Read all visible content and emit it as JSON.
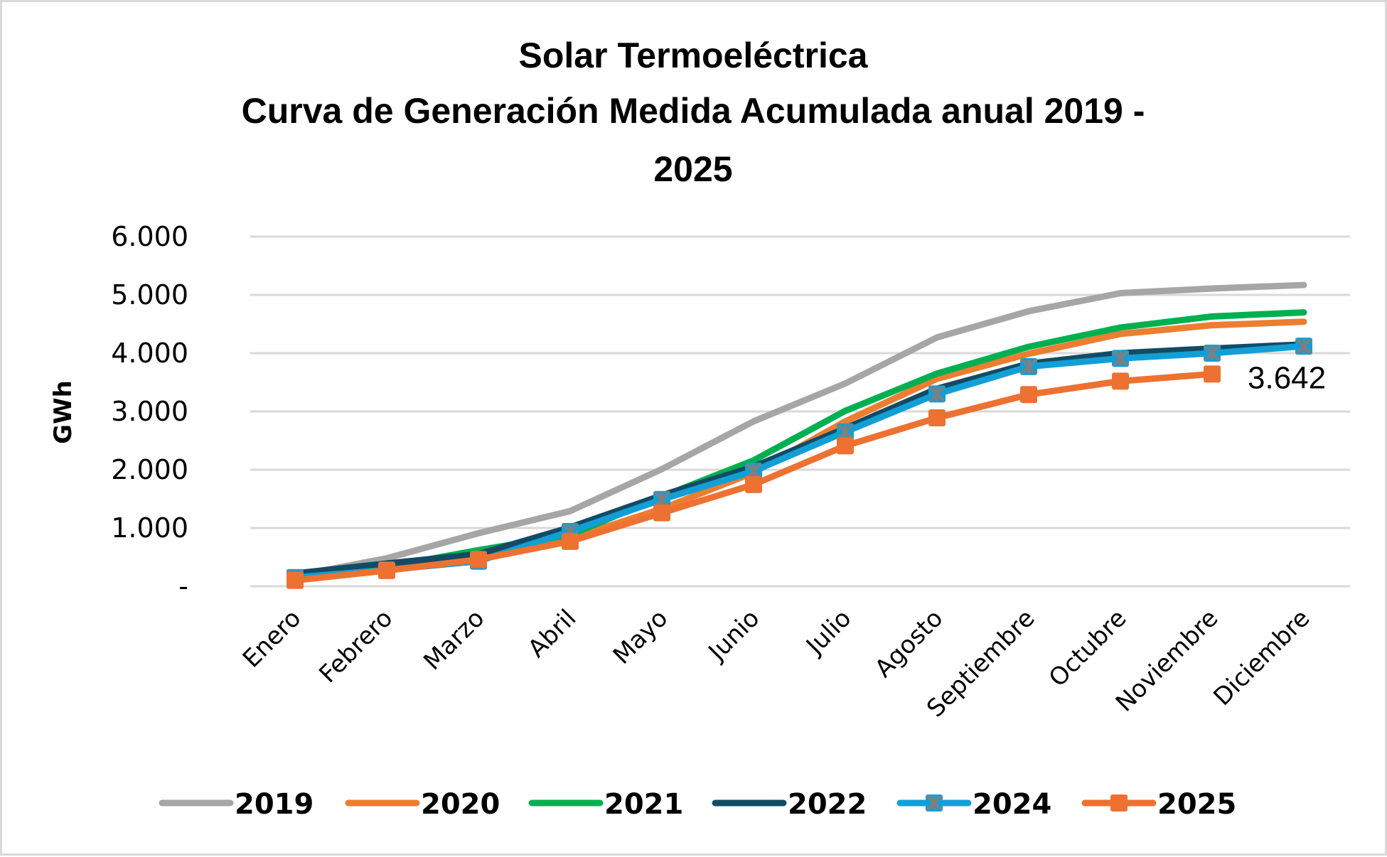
{
  "chart_data": {
    "type": "line",
    "title": [
      "Solar Termoeléctrica",
      "Curva de Generación Medida Acumulada anual 2019 -",
      "2025"
    ],
    "xlabel": "",
    "ylabel": "GWh",
    "ylim": [
      0,
      6000
    ],
    "yticks": [
      0,
      1000,
      2000,
      3000,
      4000,
      5000,
      6000
    ],
    "ytick_labels": [
      "-",
      "1.000",
      "2.000",
      "3.000",
      "4.000",
      "5.000",
      "6.000"
    ],
    "grid": true,
    "legend_position": "bottom",
    "categories": [
      "Enero",
      "Febrero",
      "Marzo",
      "Abril",
      "Mayo",
      "Junio",
      "Julio",
      "Agosto",
      "Septiembre",
      "Octubre",
      "Noviembre",
      "Diciembre"
    ],
    "series": [
      {
        "name": "2019",
        "color": "#a6a6a6",
        "marker": "none",
        "values": [
          180,
          480,
          910,
          1290,
          2010,
          2830,
          3480,
          4270,
          4720,
          5030,
          5110,
          5170
        ]
      },
      {
        "name": "2020",
        "color": "#ed7d31",
        "marker": "none",
        "values": [
          150,
          300,
          480,
          820,
          1330,
          1950,
          2830,
          3560,
          3990,
          4330,
          4480,
          4540
        ]
      },
      {
        "name": "2021",
        "color": "#00b050",
        "marker": "none",
        "values": [
          170,
          330,
          620,
          880,
          1540,
          2160,
          3010,
          3650,
          4110,
          4440,
          4630,
          4700
        ]
      },
      {
        "name": "2022",
        "color": "#134b64",
        "marker": "none",
        "values": [
          220,
          390,
          550,
          1010,
          1560,
          2050,
          2710,
          3390,
          3820,
          4000,
          4080,
          4150
        ]
      },
      {
        "name": "2024",
        "color": "#129fd6",
        "marker": "square-star",
        "marker_star_color": "#7f7f7f",
        "values": [
          150,
          280,
          430,
          940,
          1490,
          1975,
          2650,
          3300,
          3770,
          3910,
          4000,
          4120
        ]
      },
      {
        "name": "2025",
        "color": "#ed7131",
        "marker": "square",
        "values": [
          100,
          270,
          460,
          770,
          1260,
          1745,
          2410,
          2890,
          3290,
          3520,
          3642,
          null
        ]
      }
    ],
    "annotations": [
      {
        "series": "2025",
        "category": "Noviembre",
        "text": "3.642"
      }
    ]
  }
}
